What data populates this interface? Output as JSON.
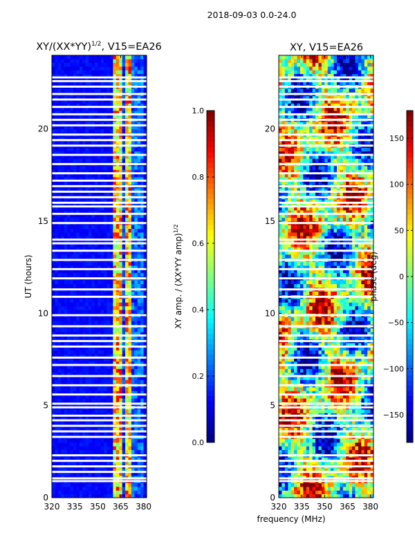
{
  "figure": {
    "suptitle": "2018-09-03 0.0-24.0",
    "shared_xlabel": "frequency (MHz)"
  },
  "chart_data": [
    {
      "type": "heatmap",
      "title": "XY/(XX*YY)",
      "title_superscript": "1/2",
      "title_suffix": ", V15=EA26",
      "xlabel": "frequency (MHz)",
      "ylabel": "UT (hours)",
      "xlim": [
        320,
        382
      ],
      "ylim": [
        0,
        24
      ],
      "xticks": [
        320,
        335,
        350,
        365,
        380
      ],
      "yticks": [
        0,
        5,
        10,
        15,
        20
      ],
      "colorbar": {
        "label": "XY amp. / (XX*YY amp)",
        "label_superscript": "1/2",
        "range": [
          0.0,
          1.0
        ],
        "ticks": [
          "0.0",
          "0.2",
          "0.4",
          "0.6",
          "0.8",
          "1.0"
        ],
        "colormap": "jet"
      },
      "value_summary": {
        "baseline_amplitude": 0.1,
        "high_amplitude_band_MHz": [
          360,
          372
        ],
        "band_peak_amplitude": 0.9
      }
    },
    {
      "type": "heatmap",
      "title": "XY, V15=EA26",
      "xlabel": "frequency (MHz)",
      "ylabel": "",
      "xlim": [
        320,
        382
      ],
      "ylim": [
        0,
        24
      ],
      "xticks": [
        320,
        335,
        350,
        365,
        380
      ],
      "yticks": [
        0,
        5,
        10,
        15,
        20
      ],
      "colorbar": {
        "label": "phase (deg)",
        "range": [
          -180,
          180
        ],
        "ticks": [
          "−150",
          "−100",
          "−50",
          "0",
          "50",
          "100",
          "150"
        ],
        "colormap": "jet"
      },
      "value_summary": {
        "phase_range_deg": [
          -180,
          180
        ]
      }
    }
  ],
  "flag_gaps_UT": [
    0.9,
    1.05,
    1.4,
    1.7,
    2.0,
    2.3,
    3.3,
    3.6,
    3.9,
    4.2,
    4.45,
    4.9,
    5.1,
    5.6,
    6.1,
    6.6,
    7.2,
    7.6,
    8.2,
    8.5,
    8.8,
    9.3,
    9.9,
    10.9,
    11.3,
    11.9,
    12.4,
    12.9,
    13.4,
    13.8,
    14.0,
    14.9,
    15.4,
    15.8,
    16.0,
    16.3,
    16.6,
    16.9,
    17.2,
    17.6,
    18.1,
    18.6,
    19.1,
    19.4,
    19.7,
    20.2,
    20.5,
    20.8,
    21.2,
    21.6,
    21.9,
    22.3,
    22.6,
    22.8
  ]
}
